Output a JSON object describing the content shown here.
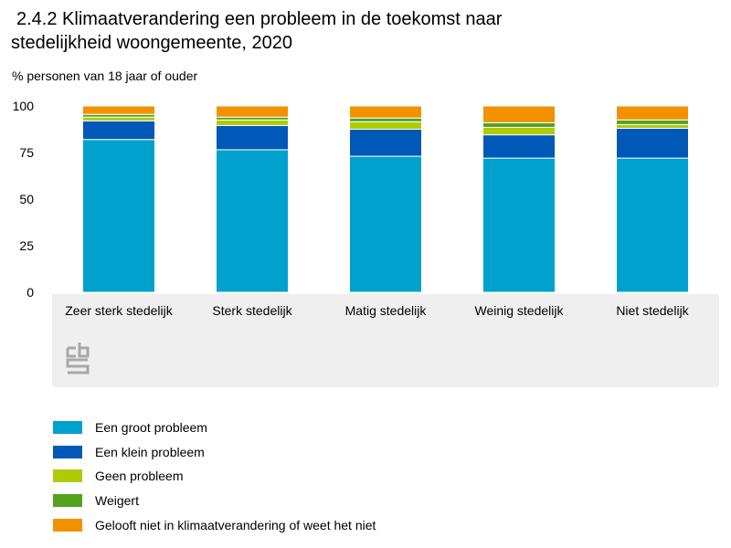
{
  "title": {
    "line1": "2.4.2 Klimaatverandering een probleem in de toekomst naar",
    "line2": "stedelijkheid woongemeente, 2020"
  },
  "chart_data": {
    "type": "bar",
    "stacked": true,
    "title": "2.4.2 Klimaatverandering een probleem in de toekomst naar stedelijkheid woongemeente, 2020",
    "ylabel": "% personen van 18 jaar of ouder",
    "xlabel": "",
    "ylim": [
      0,
      100
    ],
    "yticks": [
      0,
      25,
      50,
      75,
      100
    ],
    "categories": [
      "Zeer sterk stedelijk",
      "Sterk stedelijk",
      "Matig stedelijk",
      "Weinig stedelijk",
      "Niet stedelijk"
    ],
    "series": [
      {
        "name": "Een groot probleem",
        "color": "#00a1cd",
        "values": [
          82,
          76.5,
          73,
          72,
          72
        ]
      },
      {
        "name": "Een klein probleem",
        "color": "#0058b8",
        "values": [
          10,
          13,
          14.5,
          12.5,
          16
        ]
      },
      {
        "name": "Geen probleem",
        "color": "#afcb05",
        "values": [
          2,
          3,
          4,
          4,
          2
        ]
      },
      {
        "name": "Weigert",
        "color": "#53a31d",
        "values": [
          1.5,
          1.5,
          2,
          2.5,
          2.5
        ]
      },
      {
        "name": "Gelooft niet in klimaatverandering of weet het niet",
        "color": "#f39200",
        "values": [
          4.5,
          6,
          6.5,
          9,
          7.5
        ]
      }
    ],
    "legend_position": "bottom-left",
    "grid": false
  }
}
